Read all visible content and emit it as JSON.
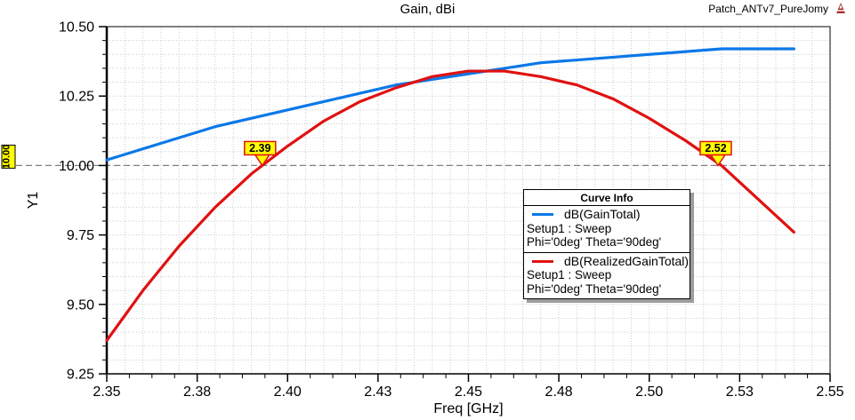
{
  "header": {
    "title": "Gain, dBi",
    "project_name": "Patch_ANTv7_PureJomy",
    "logo": "ansys-red-triangle-logo",
    "logo_color": "#a63030"
  },
  "axes": {
    "x": {
      "label": "Freq [GHz]",
      "min": 2.35,
      "max": 2.55,
      "major_tick_values": [
        2.35,
        2.375,
        2.4,
        2.425,
        2.45,
        2.475,
        2.5,
        2.525,
        2.55
      ],
      "major_tick_labels": [
        "2.35",
        "2.38",
        "2.40",
        "2.43",
        "2.45",
        "2.48",
        "2.50",
        "2.53",
        "2.55"
      ],
      "minor_divisions_per_major": 4,
      "grid_divisions_per_major": 5
    },
    "y": {
      "label": "Y1",
      "min": 9.25,
      "max": 10.5,
      "major_tick_values": [
        9.25,
        9.5,
        9.75,
        10.0,
        10.25,
        10.5
      ],
      "major_tick_labels": [
        "9.25",
        "9.50",
        "9.75",
        "10.00",
        "10.25",
        "10.50"
      ],
      "minor_divisions_per_major": 5,
      "grid_divisions_per_major": 5
    }
  },
  "reference_line": {
    "value": 10.0,
    "label": "10.00",
    "fill": "#ffff00",
    "line_color": "#7f7f7f"
  },
  "markers": [
    {
      "label": "2.39",
      "x": 2.393,
      "y": 10.0,
      "fill": "#ffff00",
      "border": "#e01111"
    },
    {
      "label": "2.52",
      "x": 2.519,
      "y": 10.0,
      "fill": "#ffff00",
      "border": "#e01111"
    }
  ],
  "legend": {
    "title": "Curve Info",
    "entries": [
      {
        "label": "dB(GainTotal)",
        "detail1": "Setup1 : Sweep",
        "detail2": "Phi='0deg' Theta='90deg'",
        "color": "#0a78e8"
      },
      {
        "label": "dB(RealizedGainTotal)",
        "detail1": "Setup1 : Sweep",
        "detail2": "Phi='0deg' Theta='90deg'",
        "color": "#e01111"
      }
    ]
  },
  "chart_data": {
    "type": "line",
    "title": "Gain, dBi",
    "xlabel": "Freq [GHz]",
    "ylabel": "Y1",
    "xlim": [
      2.35,
      2.55
    ],
    "ylim": [
      9.25,
      10.5
    ],
    "grid": true,
    "legend_position": "inside-right",
    "x": [
      2.35,
      2.36,
      2.37,
      2.38,
      2.39,
      2.4,
      2.41,
      2.42,
      2.43,
      2.44,
      2.45,
      2.46,
      2.47,
      2.48,
      2.49,
      2.5,
      2.51,
      2.52,
      2.53,
      2.54
    ],
    "series": [
      {
        "name": "dB(GainTotal)",
        "color": "#0a78e8",
        "values": [
          10.02,
          10.06,
          10.1,
          10.14,
          10.17,
          10.2,
          10.23,
          10.26,
          10.29,
          10.31,
          10.33,
          10.35,
          10.37,
          10.38,
          10.39,
          10.4,
          10.41,
          10.42,
          10.42,
          10.42
        ]
      },
      {
        "name": "dB(RealizedGainTotal)",
        "color": "#e01111",
        "values": [
          9.37,
          9.55,
          9.71,
          9.85,
          9.97,
          10.07,
          10.16,
          10.23,
          10.28,
          10.32,
          10.34,
          10.34,
          10.32,
          10.29,
          10.24,
          10.17,
          10.09,
          10.0,
          9.88,
          9.76
        ]
      }
    ],
    "annotations": [
      {
        "type": "hline",
        "y": 10.0,
        "style": "dashed",
        "label": "10.00"
      },
      {
        "type": "marker",
        "x": 2.393,
        "y": 10.0,
        "label": "2.39"
      },
      {
        "type": "marker",
        "x": 2.519,
        "y": 10.0,
        "label": "2.52"
      }
    ]
  }
}
